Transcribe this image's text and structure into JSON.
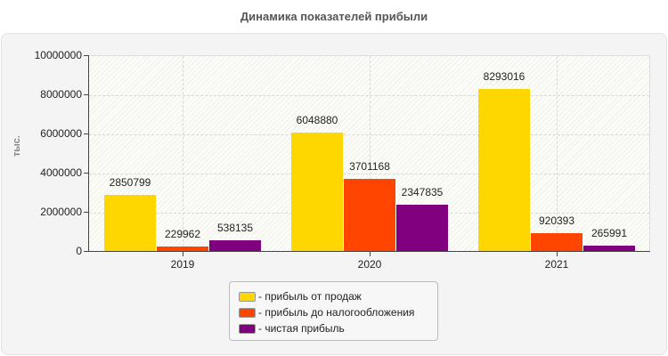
{
  "title": "Динамика показателей прибыли",
  "chart_data": {
    "type": "bar",
    "title": "Динамика показателей прибыли",
    "xlabel": "",
    "ylabel": "тыс.",
    "categories": [
      "2019",
      "2020",
      "2021"
    ],
    "series": [
      {
        "name": "- прибыль от продаж",
        "color": "#ffd700",
        "values": [
          2850799,
          6048880,
          8293016
        ]
      },
      {
        "name": "- прибыль до налогообложения",
        "color": "#ff4500",
        "values": [
          229962,
          3701168,
          920393
        ]
      },
      {
        "name": "- чистая прибыль",
        "color": "#800080",
        "values": [
          538135,
          2347835,
          265991
        ]
      }
    ],
    "ylim": [
      0,
      10000000
    ],
    "yticks": [
      "0",
      "2000000",
      "4000000",
      "6000000",
      "8000000",
      "10000000"
    ],
    "grid": true,
    "legend_position": "bottom"
  }
}
